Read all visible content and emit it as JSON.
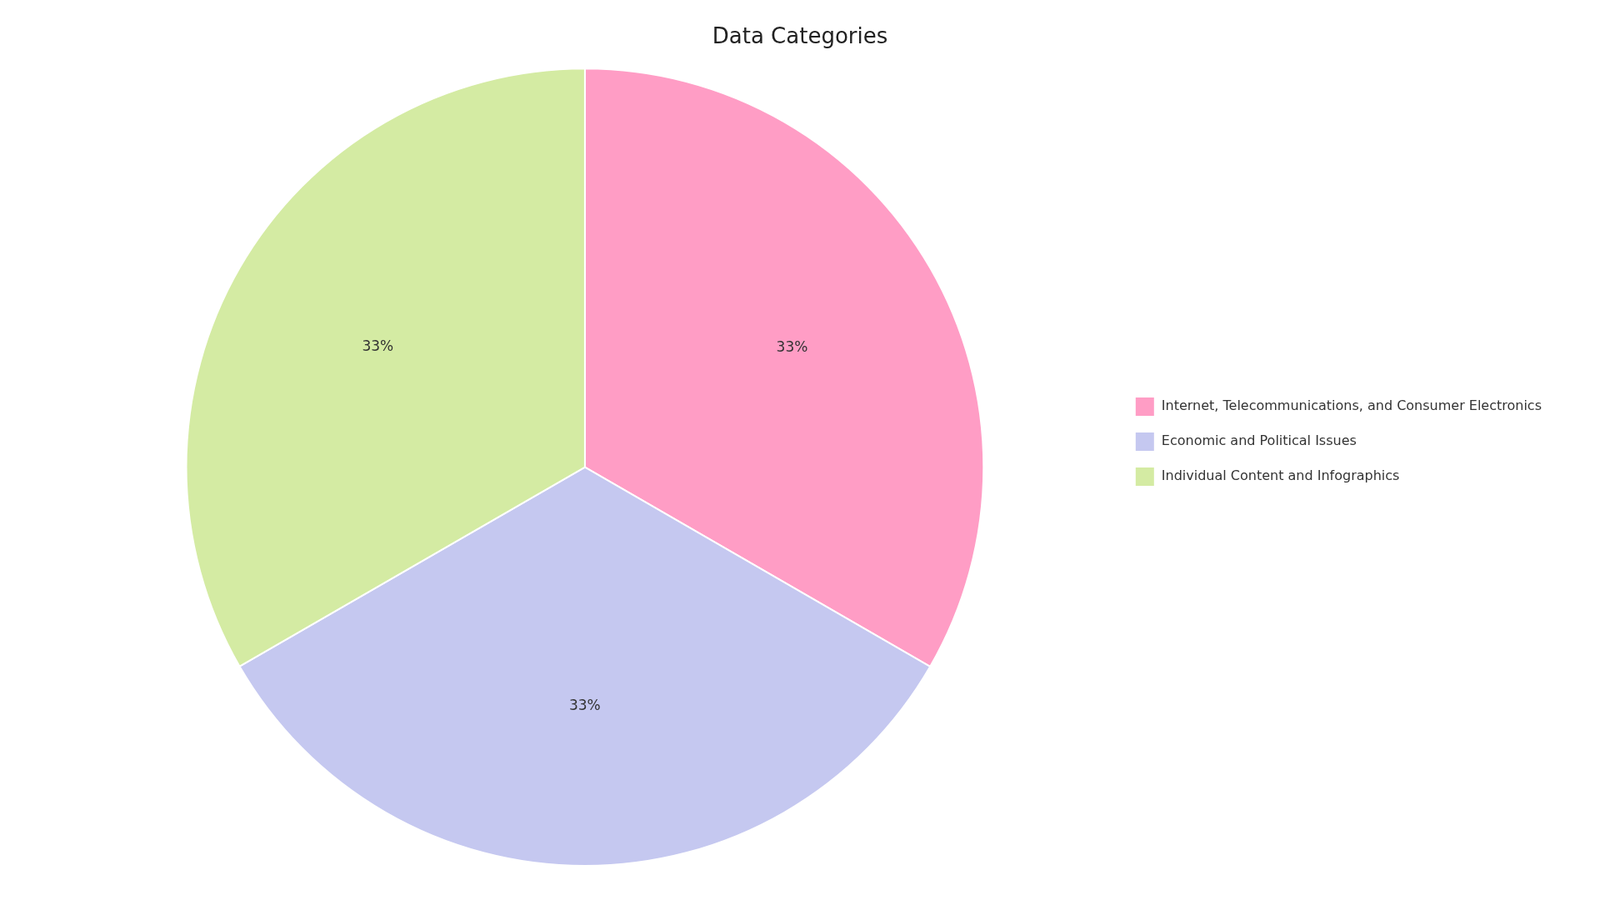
{
  "chart_data": {
    "type": "pie",
    "title": "Data Categories",
    "categories": [
      "Internet, Telecommunications, and Consumer Electronics",
      "Economic and Political Issues",
      "Individual Content and Infographics"
    ],
    "values": [
      33.34,
      33.33,
      33.33
    ],
    "value_labels": [
      "33%",
      "33%",
      "33%"
    ],
    "colors": [
      "#FF9DC5",
      "#C5C8F0",
      "#D4EBA3"
    ],
    "data_labels": true,
    "legend": "right"
  }
}
